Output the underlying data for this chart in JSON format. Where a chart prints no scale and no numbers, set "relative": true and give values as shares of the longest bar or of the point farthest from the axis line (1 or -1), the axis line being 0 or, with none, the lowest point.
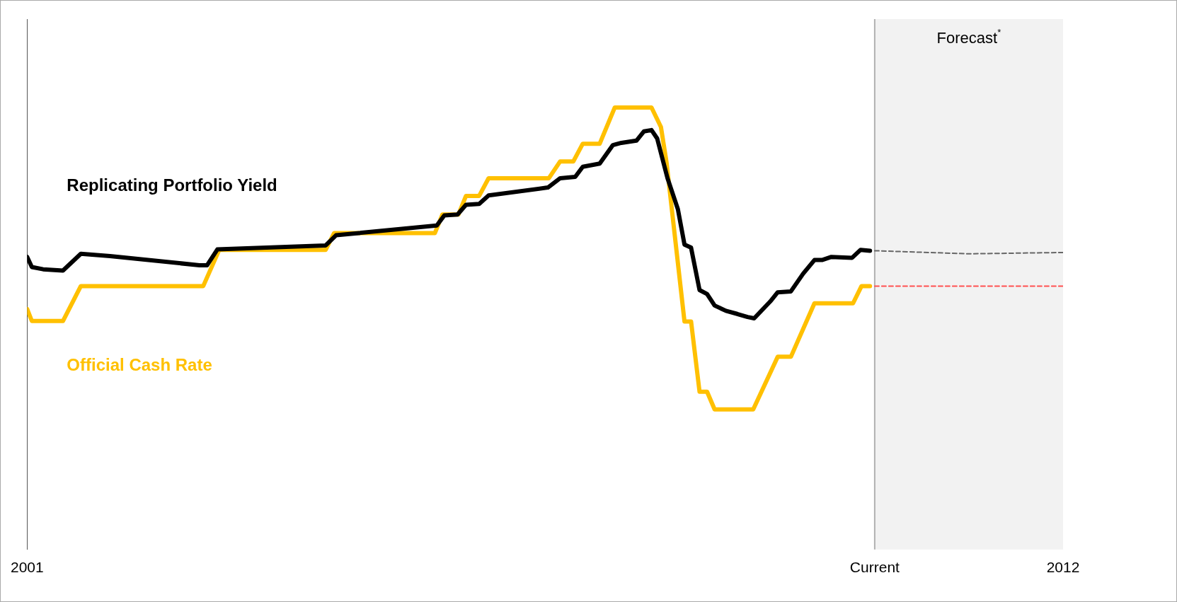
{
  "chart_data": {
    "type": "line",
    "relative": true,
    "xlim": [
      2001,
      2012
    ],
    "xticks": [
      2001,
      {
        "value": 2010,
        "label": "Current"
      },
      2012
    ],
    "series": [
      {
        "name": "Replicating Portfolio Yield",
        "color": "#000000",
        "x": [
          2001.0,
          2001.05,
          2001.17,
          2001.38,
          2001.57,
          2001.88,
          2002.83,
          2002.91,
          2003.02,
          2004.17,
          2004.28,
          2005.35,
          2005.43,
          2005.57,
          2005.66,
          2005.8,
          2005.9,
          2006.53,
          2006.66,
          2006.82,
          2006.9,
          2007.08,
          2007.22,
          2007.31,
          2007.47,
          2007.55,
          2007.63,
          2007.69,
          2007.8,
          2007.91,
          2007.98,
          2008.05,
          2008.14,
          2008.22,
          2008.3,
          2008.42,
          2008.54,
          2008.65,
          2008.72,
          2008.89,
          2008.97,
          2009.11,
          2009.24,
          2009.36,
          2009.44,
          2009.54,
          2009.76,
          2009.85,
          2009.95
        ],
        "values": [
          0.662,
          0.639,
          0.634,
          0.631,
          0.669,
          0.664,
          0.643,
          0.643,
          0.679,
          0.688,
          0.711,
          0.733,
          0.756,
          0.758,
          0.78,
          0.782,
          0.801,
          0.819,
          0.84,
          0.843,
          0.866,
          0.873,
          0.915,
          0.92,
          0.925,
          0.946,
          0.949,
          0.93,
          0.84,
          0.77,
          0.69,
          0.683,
          0.587,
          0.578,
          0.552,
          0.54,
          0.533,
          0.526,
          0.523,
          0.561,
          0.582,
          0.584,
          0.624,
          0.655,
          0.655,
          0.662,
          0.66,
          0.678,
          0.676
        ]
      },
      {
        "name": "Official Cash Rate",
        "color": "#ffc000",
        "x": [
          2001.0,
          2001.05,
          2001.38,
          2001.57,
          2002.87,
          2003.04,
          2004.17,
          2004.26,
          2005.33,
          2005.41,
          2005.58,
          2005.66,
          2005.8,
          2005.9,
          2006.54,
          2006.66,
          2006.8,
          2006.9,
          2007.08,
          2007.24,
          2007.63,
          2007.73,
          2007.79,
          2007.98,
          2008.05,
          2008.14,
          2008.22,
          2008.3,
          2008.71,
          2008.97,
          2009.11,
          2009.36,
          2009.77,
          2009.86,
          2009.95
        ],
        "values": [
          0.544,
          0.517,
          0.517,
          0.596,
          0.596,
          0.678,
          0.678,
          0.716,
          0.716,
          0.758,
          0.758,
          0.8,
          0.8,
          0.84,
          0.84,
          0.878,
          0.878,
          0.918,
          0.918,
          1,
          1,
          0.956,
          0.875,
          0.516,
          0.516,
          0.357,
          0.357,
          0.317,
          0.317,
          0.436,
          0.436,
          0.557,
          0.557,
          0.596,
          0.596
        ]
      },
      {
        "color": "#666666",
        "line_style": "dashed",
        "x": [
          2010,
          2011,
          2012
        ],
        "values": [
          0.676,
          0.669,
          0.672
        ]
      },
      {
        "color": "#ff5050",
        "line_style": "dashed",
        "x": [
          2010,
          2012
        ],
        "values": [
          0.596,
          0.596
        ]
      }
    ],
    "bands": [
      {
        "axis": "x",
        "from": 2010,
        "to": 2012,
        "label": "Forecast$^{*}$",
        "color": "#f2f2f2"
      }
    ]
  }
}
